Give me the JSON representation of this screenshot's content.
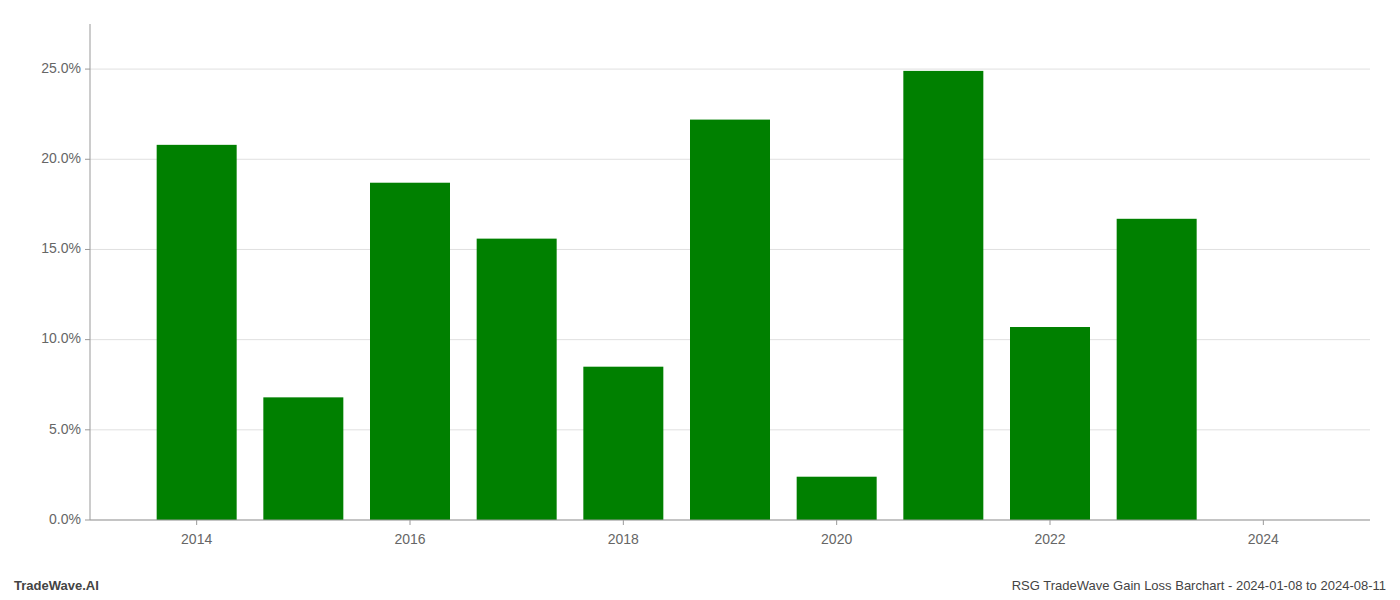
{
  "chart_data": {
    "type": "bar",
    "x": [
      2014,
      2015,
      2016,
      2017,
      2018,
      2019,
      2020,
      2021,
      2022,
      2023
    ],
    "values": [
      0.208,
      0.068,
      0.187,
      0.156,
      0.085,
      0.222,
      0.024,
      0.249,
      0.107,
      0.167
    ],
    "color": "#008000",
    "xlim": [
      2013.0,
      2025.0
    ],
    "xticks": [
      2014,
      2016,
      2018,
      2020,
      2022,
      2024
    ],
    "ylim": [
      0,
      0.275
    ],
    "yticks": [
      {
        "value": 0.0,
        "label": "0.0%"
      },
      {
        "value": 0.05,
        "label": "5.0%"
      },
      {
        "value": 0.1,
        "label": "10.0%"
      },
      {
        "value": 0.15,
        "label": "15.0%"
      },
      {
        "value": 0.2,
        "label": "20.0%"
      },
      {
        "value": 0.25,
        "label": "25.0%"
      }
    ],
    "grid": true,
    "annotations": [
      "TradeWave.AI",
      "RSG TradeWave Gain Loss Barchart - 2024-01-08 to 2024-08-11"
    ]
  }
}
